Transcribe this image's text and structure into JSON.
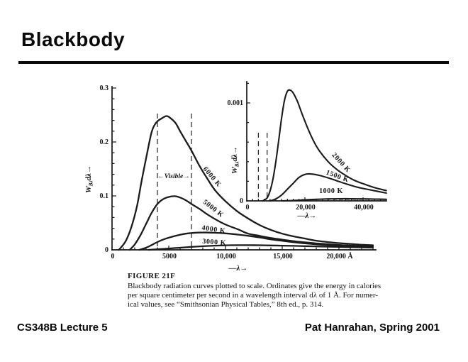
{
  "slide": {
    "title": "Blackbody",
    "footer_left": "CS348B Lecture 5",
    "footer_right": "Pat Hanrahan, Spring 2001"
  },
  "figure": {
    "label": "FIGURE 21F",
    "caption_lines": [
      "Blackbody radiation curves plotted to scale.  Ordinates give the energy in calories",
      "per square centimeter per second in a wavelength interval dλ of 1 Å.  For numer-",
      "ical values, see “Smithsonian Physical Tables,” 8th ed., p. 314."
    ]
  },
  "chart_data": [
    {
      "type": "line",
      "role": "main-plot",
      "xlabel": "—λ→",
      "ylabel": {
        "base": "W",
        "sub": "Bλ",
        "rest": "dλ→"
      },
      "x_unit": "Å",
      "xlim": [
        0,
        23000
      ],
      "ylim": [
        0,
        0.3
      ],
      "grid": false,
      "x_ticks": [
        {
          "v": 0,
          "label": "0"
        },
        {
          "v": 5000,
          "label": "5000"
        },
        {
          "v": 10000,
          "label": "10,000"
        },
        {
          "v": 15000,
          "label": "15,000"
        },
        {
          "v": 20000,
          "label": "20,000 Å"
        }
      ],
      "y_ticks": [
        {
          "v": 0,
          "label": "0"
        },
        {
          "v": 0.1,
          "label": "0.1"
        },
        {
          "v": 0.2,
          "label": "0.2"
        },
        {
          "v": 0.3,
          "label": "0.3"
        }
      ],
      "visible_band": {
        "x_range": [
          4000,
          7000
        ],
        "label": "←Visible→"
      },
      "series": [
        {
          "name": "6000 K",
          "x": [
            600,
            1200,
            1700,
            2200,
            2600,
            3100,
            3500,
            3900,
            4400,
            4800,
            5100,
            5600,
            6000,
            6500,
            7000,
            7700,
            8400,
            9100,
            10000,
            11000,
            12000,
            13000,
            14000,
            15000,
            16000,
            17000,
            18000,
            19000,
            20000,
            21000,
            22000,
            23000
          ],
          "y": [
            0,
            0.016,
            0.042,
            0.081,
            0.127,
            0.18,
            0.219,
            0.236,
            0.244,
            0.248,
            0.245,
            0.235,
            0.22,
            0.202,
            0.184,
            0.156,
            0.132,
            0.11,
            0.09,
            0.072,
            0.058,
            0.046,
            0.037,
            0.03,
            0.025,
            0.021,
            0.017,
            0.0145,
            0.0125,
            0.011,
            0.0095,
            0.0085
          ]
        },
        {
          "name": "5000 K",
          "x": [
            1550,
            2000,
            2500,
            3000,
            3500,
            4000,
            4500,
            5000,
            5500,
            6000,
            6500,
            7000,
            7700,
            8450,
            9250,
            10100,
            11100,
            12000,
            13000,
            14000,
            15000,
            16000,
            17000,
            18000,
            19000,
            20000,
            21000,
            22000,
            23000
          ],
          "y": [
            0,
            0.01,
            0.027,
            0.048,
            0.069,
            0.085,
            0.094,
            0.098,
            0.0995,
            0.097,
            0.092,
            0.085,
            0.076,
            0.065,
            0.055,
            0.046,
            0.038,
            0.03,
            0.026,
            0.022,
            0.019,
            0.016,
            0.014,
            0.012,
            0.0105,
            0.009,
            0.008,
            0.007,
            0.0062
          ]
        },
        {
          "name": "4000 K",
          "x": [
            2400,
            3000,
            3500,
            4000,
            4500,
            5000,
            5500,
            6000,
            6500,
            7000,
            7600,
            8200,
            9000,
            10000,
            11000,
            12000,
            13000,
            14000,
            15000,
            16000,
            17000,
            18000,
            19000,
            20000,
            21000,
            22000,
            23000
          ],
          "y": [
            0,
            0.004,
            0.009,
            0.0145,
            0.019,
            0.0225,
            0.0255,
            0.028,
            0.03,
            0.0312,
            0.032,
            0.0322,
            0.0317,
            0.0305,
            0.0285,
            0.026,
            0.023,
            0.0195,
            0.0168,
            0.0142,
            0.012,
            0.0102,
            0.0088,
            0.0076,
            0.0066,
            0.0058,
            0.0052
          ]
        },
        {
          "name": "3000 K",
          "x": [
            3200,
            4000,
            5000,
            6000,
            7000,
            8000,
            9000,
            10000,
            11000,
            12000,
            13000,
            14000,
            15000,
            16000,
            17000,
            18000,
            19000,
            20000,
            21000,
            22000,
            23000
          ],
          "y": [
            0,
            0.001,
            0.0025,
            0.004,
            0.0055,
            0.0067,
            0.0077,
            0.0084,
            0.0087,
            0.0087,
            0.0085,
            0.0082,
            0.0078,
            0.0074,
            0.0069,
            0.0064,
            0.0059,
            0.0054,
            0.005,
            0.0046,
            0.0042
          ]
        }
      ]
    },
    {
      "type": "line",
      "role": "inset-plot",
      "xlabel": "—λ→",
      "ylabel": {
        "base": "W",
        "sub": "Bλ",
        "rest": "dλ→"
      },
      "x_unit": "Å",
      "xlim": [
        0,
        48000
      ],
      "ylim": [
        0,
        0.00122
      ],
      "grid": false,
      "x_ticks": [
        {
          "v": 0,
          "label": "0"
        },
        {
          "v": 20000,
          "label": "20,000"
        },
        {
          "v": 40000,
          "label": "40,000"
        }
      ],
      "y_ticks": [
        {
          "v": 0,
          "label": "0"
        },
        {
          "v": 0.001,
          "label": "0.001"
        }
      ],
      "visible_band": {
        "x_range": [
          4000,
          7000
        ],
        "label": ""
      },
      "series": [
        {
          "name": "2000 K",
          "x": [
            5500,
            7000,
            8000,
            9000,
            10000,
            11000,
            12000,
            13000,
            14000,
            15000,
            16000,
            17500,
            19000,
            21000,
            23000,
            25000,
            28000,
            31000,
            34000,
            37000,
            40000,
            44000,
            48000
          ],
          "y": [
            0,
            3e-05,
            0.0001,
            0.00022,
            0.0004,
            0.00062,
            0.00085,
            0.00103,
            0.00112,
            0.00113,
            0.0011,
            0.00101,
            0.00089,
            0.00074,
            0.00061,
            0.00051,
            0.0004,
            0.00032,
            0.00026,
            0.00021,
            0.000175,
            0.000135,
            0.000105
          ]
        },
        {
          "name": "1500 K",
          "x": [
            8000,
            10000,
            12000,
            14000,
            16000,
            18000,
            20000,
            22000,
            25000,
            28000,
            31000,
            34000,
            38000,
            42000,
            48000
          ],
          "y": [
            0,
            2e-05,
            6e-05,
            0.00012,
            0.00018,
            0.00024,
            0.00027,
            0.000275,
            0.00026,
            0.000235,
            0.000205,
            0.000175,
            0.00014,
            0.000115,
            8e-05
          ]
        },
        {
          "name": "1000 K",
          "x": [
            12000,
            16000,
            20000,
            24000,
            28000,
            32000,
            36000,
            40000,
            44000,
            48000
          ],
          "y": [
            0,
            4e-06,
            1e-05,
            1.6e-05,
            2e-05,
            2.2e-05,
            2.2e-05,
            2e-05,
            1.8e-05,
            1.6e-05
          ]
        }
      ]
    }
  ]
}
